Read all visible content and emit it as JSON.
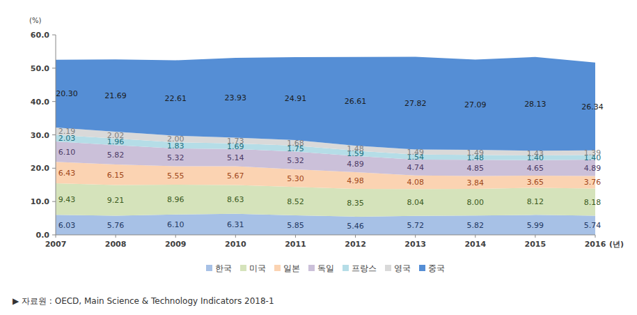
{
  "chart_data": {
    "type": "area",
    "stacked": true,
    "data_labels": true,
    "grid": false,
    "legend": "bottom",
    "y_label": "(%)",
    "x_label": "(년)",
    "source": "▶ 자료원 : OECD, Main Science & Technology Indicators 2018-1",
    "categories": [
      "2007",
      "2008",
      "2009",
      "2010",
      "2011",
      "2012",
      "2013",
      "2014",
      "2015",
      "2016"
    ],
    "ylim": [
      0,
      60
    ],
    "yticks": [
      {
        "value": 0,
        "label": "0.0"
      },
      {
        "value": 10,
        "label": "10.0"
      },
      {
        "value": 20,
        "label": "20.0"
      },
      {
        "value": 30,
        "label": "30.0"
      },
      {
        "value": 40,
        "label": "40.0"
      },
      {
        "value": 50,
        "label": "50.0"
      },
      {
        "value": 60,
        "label": "60.0"
      }
    ],
    "series": [
      {
        "name": "한국",
        "color": "#a7c1e6",
        "values": [
          6.03,
          5.76,
          6.1,
          6.31,
          5.85,
          5.46,
          5.72,
          5.82,
          5.99,
          5.74
        ],
        "value_labels": [
          "6.03",
          "5.76",
          "6.10",
          "6.31",
          "5.85",
          "5.46",
          "5.72",
          "5.82",
          "5.99",
          "5.74"
        ]
      },
      {
        "name": "미국",
        "color": "#d5e3bb",
        "values": [
          9.43,
          9.21,
          8.96,
          8.63,
          8.52,
          8.35,
          8.04,
          8.0,
          8.12,
          8.18
        ],
        "value_labels": [
          "9.43",
          "9.21",
          "8.96",
          "8.63",
          "8.52",
          "8.35",
          "8.04",
          "8.00",
          "8.12",
          "8.18"
        ]
      },
      {
        "name": "일본",
        "color": "#fbd3b2",
        "values": [
          6.43,
          6.15,
          5.55,
          5.67,
          5.3,
          4.98,
          4.08,
          3.84,
          3.65,
          3.76
        ],
        "value_labels": [
          "6.43",
          "6.15",
          "5.55",
          "5.67",
          "5.30",
          "4.98",
          "4.08",
          "3.84",
          "3.65",
          "3.76"
        ]
      },
      {
        "name": "독일",
        "color": "#cbc0d9",
        "values": [
          6.1,
          5.82,
          5.32,
          5.14,
          5.32,
          4.89,
          4.74,
          4.85,
          4.65,
          4.89
        ],
        "value_labels": [
          "6.10",
          "5.82",
          "5.32",
          "5.14",
          "5.32",
          "4.89",
          "4.74",
          "4.85",
          "4.65",
          "4.89"
        ]
      },
      {
        "name": "프랑스",
        "color": "#b5dde7",
        "values": [
          2.03,
          1.96,
          1.83,
          1.69,
          1.75,
          1.59,
          1.54,
          1.48,
          1.4,
          1.4
        ],
        "value_labels": [
          "2.03",
          "1.96",
          "1.83",
          "1.69",
          "1.75",
          "1.59",
          "1.54",
          "1.48",
          "1.40",
          "1.40"
        ]
      },
      {
        "name": "영국",
        "color": "#d9d9d9",
        "values": [
          2.19,
          2.02,
          2.0,
          1.73,
          1.68,
          1.48,
          1.49,
          1.49,
          1.43,
          1.39
        ],
        "value_labels": [
          "2.19",
          "2.02",
          "2.00",
          "1.73",
          "1.68",
          "1.48",
          "1.49",
          "1.49",
          "1.43",
          "1.39"
        ]
      },
      {
        "name": "중국",
        "color": "#558ed5",
        "values": [
          20.3,
          21.69,
          22.61,
          23.93,
          24.91,
          26.61,
          27.82,
          27.09,
          28.13,
          26.34
        ],
        "value_labels": [
          "20.30",
          "21.69",
          "22.61",
          "23.93",
          "24.91",
          "26.61",
          "27.82",
          "27.09",
          "28.13",
          "26.34"
        ]
      }
    ]
  }
}
